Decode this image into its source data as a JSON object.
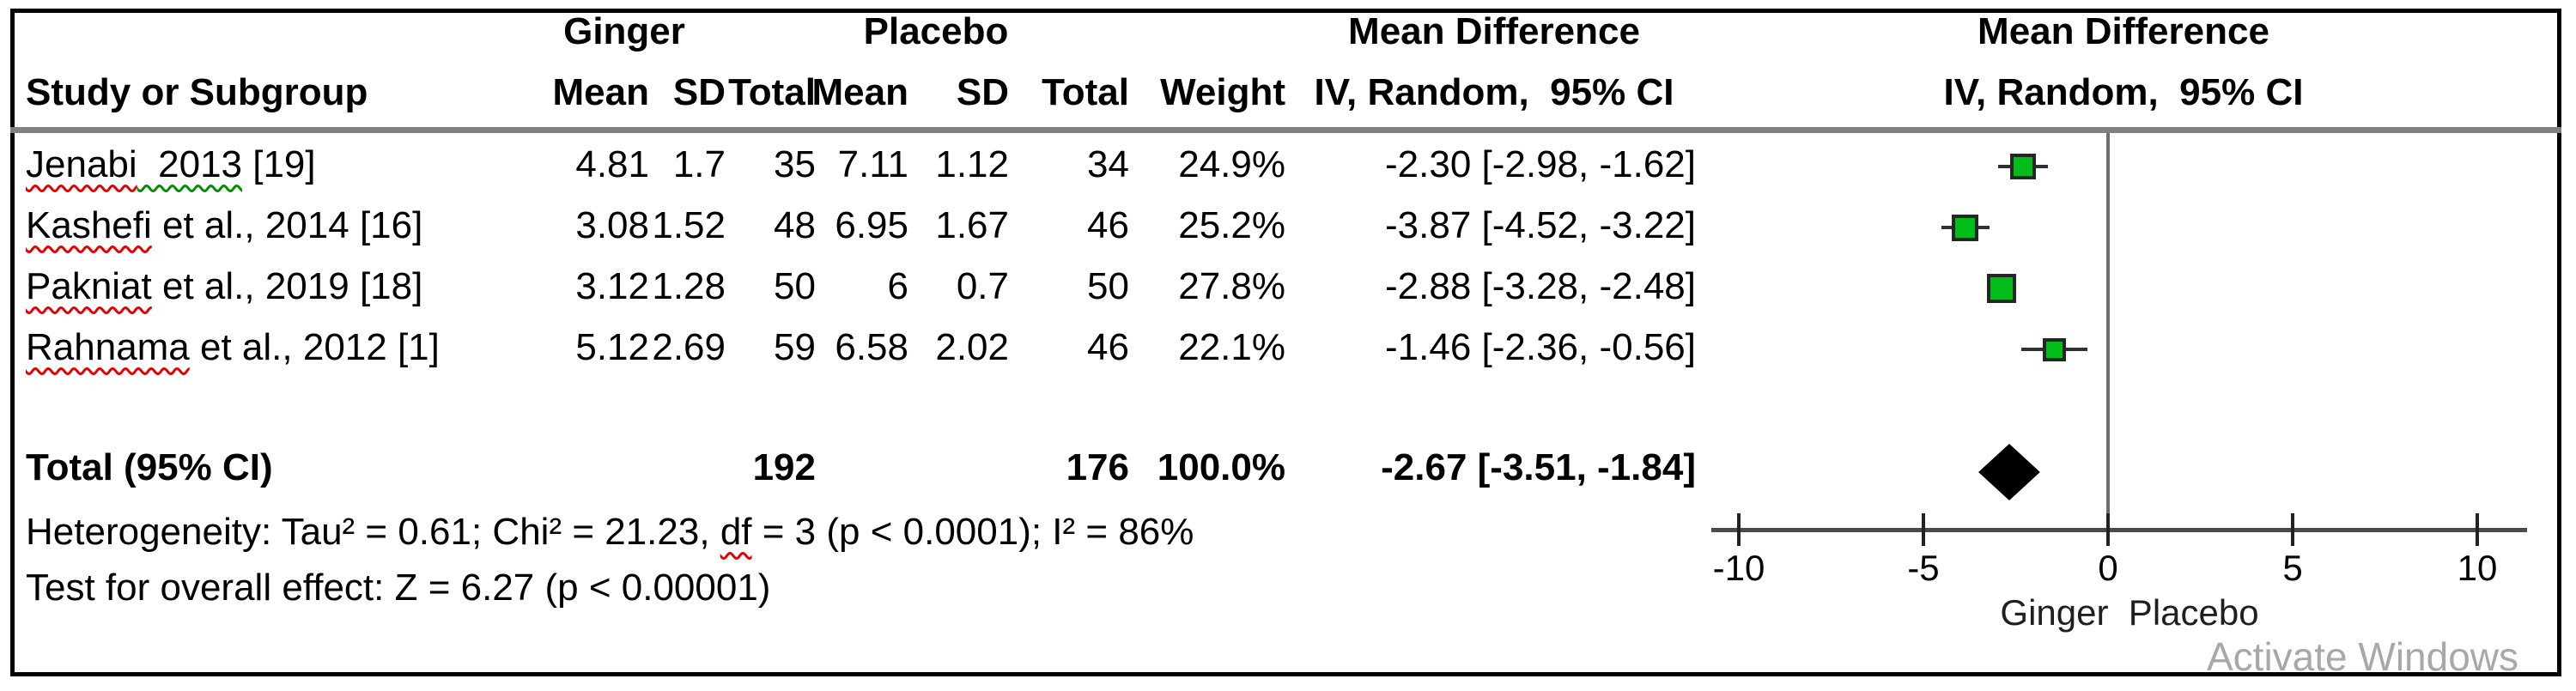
{
  "header": {
    "group_ginger": "Ginger",
    "group_placebo": "Placebo",
    "md_line1": "Mean Difference",
    "md_line2": "IV, Random,  95% CI",
    "plot_line1": "Mean Difference",
    "plot_line2": "IV, Random,  95% CI",
    "study": "Study or Subgroup",
    "g_mean": "Mean",
    "g_sd": "SD",
    "g_total": "Total",
    "p_mean": "Mean",
    "p_sd": "SD",
    "p_total": "Total",
    "weight": "Weight"
  },
  "rows": [
    {
      "name_red": "Jenabi",
      "name_green": "  2013",
      "name_rest": " [19]",
      "g_mean": "4.81",
      "g_sd": "1.7",
      "g_total": "35",
      "p_mean": "7.11",
      "p_sd": "1.12",
      "p_total": "34",
      "weight": "24.9%",
      "md_ci": "-2.30 [-2.98, -1.62]"
    },
    {
      "name_red": "Kashefi",
      "name_green": "",
      "name_rest": " et al., 2014 [16]",
      "g_mean": "3.08",
      "g_sd": "1.52",
      "g_total": "48",
      "p_mean": "6.95",
      "p_sd": "1.67",
      "p_total": "46",
      "weight": "25.2%",
      "md_ci": "-3.87 [-4.52, -3.22]"
    },
    {
      "name_red": "Pakniat",
      "name_green": "",
      "name_rest": " et al., 2019 [18]",
      "g_mean": "3.12",
      "g_sd": "1.28",
      "g_total": "50",
      "p_mean": "6",
      "p_sd": "0.7",
      "p_total": "50",
      "weight": "27.8%",
      "md_ci": "-2.88 [-3.28, -2.48]"
    },
    {
      "name_red": "Rahnama",
      "name_green": "",
      "name_rest": " et al., 2012 [1]",
      "g_mean": "5.12",
      "g_sd": "2.69",
      "g_total": "59",
      "p_mean": "6.58",
      "p_sd": "2.02",
      "p_total": "46",
      "weight": "22.1%",
      "md_ci": "-1.46 [-2.36, -0.56]"
    }
  ],
  "total_row": {
    "label": "Total (95% CI)",
    "g_total": "192",
    "p_total": "176",
    "weight": "100.0%",
    "md_ci": "-2.67 [-3.51, -1.84]"
  },
  "footer": {
    "het_pre": "Heterogeneity: Tau² = 0.61; Chi² = 21.23, ",
    "het_wavy": "df",
    "het_post": " = 3 (p < 0.0001); I² = 86%",
    "overall": "Test for overall effect: Z = 6.27 (p < 0.00001)"
  },
  "axis_labels": {
    "favours": "Ginger  Placebo"
  },
  "watermark": "Activate Windows",
  "colors": {
    "marker_green": "#00bd19",
    "diamond_black": "#000000",
    "separator_gray": "#808080",
    "watermark_gray": "#a8a8a8",
    "wavy_red": "#e60000",
    "wavy_green": "#008f00"
  },
  "chart_data": {
    "type": "forest",
    "title": "Mean Difference, IV, Random, 95% CI — Ginger vs Placebo",
    "studies": [
      "Jenabi 2013 [19]",
      "Kashefi et al., 2014 [16]",
      "Pakniat et al., 2019 [18]",
      "Rahnama et al., 2012 [1]"
    ],
    "ginger": {
      "mean": [
        4.81,
        3.08,
        3.12,
        5.12
      ],
      "sd": [
        1.7,
        1.52,
        1.28,
        2.69
      ],
      "total": [
        35,
        48,
        50,
        59
      ]
    },
    "placebo": {
      "mean": [
        7.11,
        6.95,
        6,
        6.58
      ],
      "sd": [
        1.12,
        1.67,
        0.7,
        2.02
      ],
      "total": [
        34,
        46,
        50,
        46
      ]
    },
    "weights_pct": [
      24.9,
      25.2,
      27.8,
      22.1
    ],
    "md": [
      -2.3,
      -3.87,
      -2.88,
      -1.46
    ],
    "ci_low": [
      -2.98,
      -4.52,
      -3.28,
      -2.36
    ],
    "ci_high": [
      -1.62,
      -3.22,
      -2.48,
      -0.56
    ],
    "total": {
      "md": -2.67,
      "ci_low": -3.51,
      "ci_high": -1.84,
      "ginger_n": 192,
      "placebo_n": 176,
      "weight_pct": 100.0
    },
    "heterogeneity": {
      "tau2": 0.61,
      "chi2": 21.23,
      "df": 3,
      "p": "< 0.0001",
      "i2_pct": 86
    },
    "overall_effect": {
      "z": 6.27,
      "p": "< 0.00001"
    },
    "axis": {
      "min": -10,
      "max": 10,
      "ticks": [
        -10,
        -5,
        0,
        5,
        10
      ],
      "label_left": "Ginger",
      "label_right": "Placebo"
    }
  }
}
